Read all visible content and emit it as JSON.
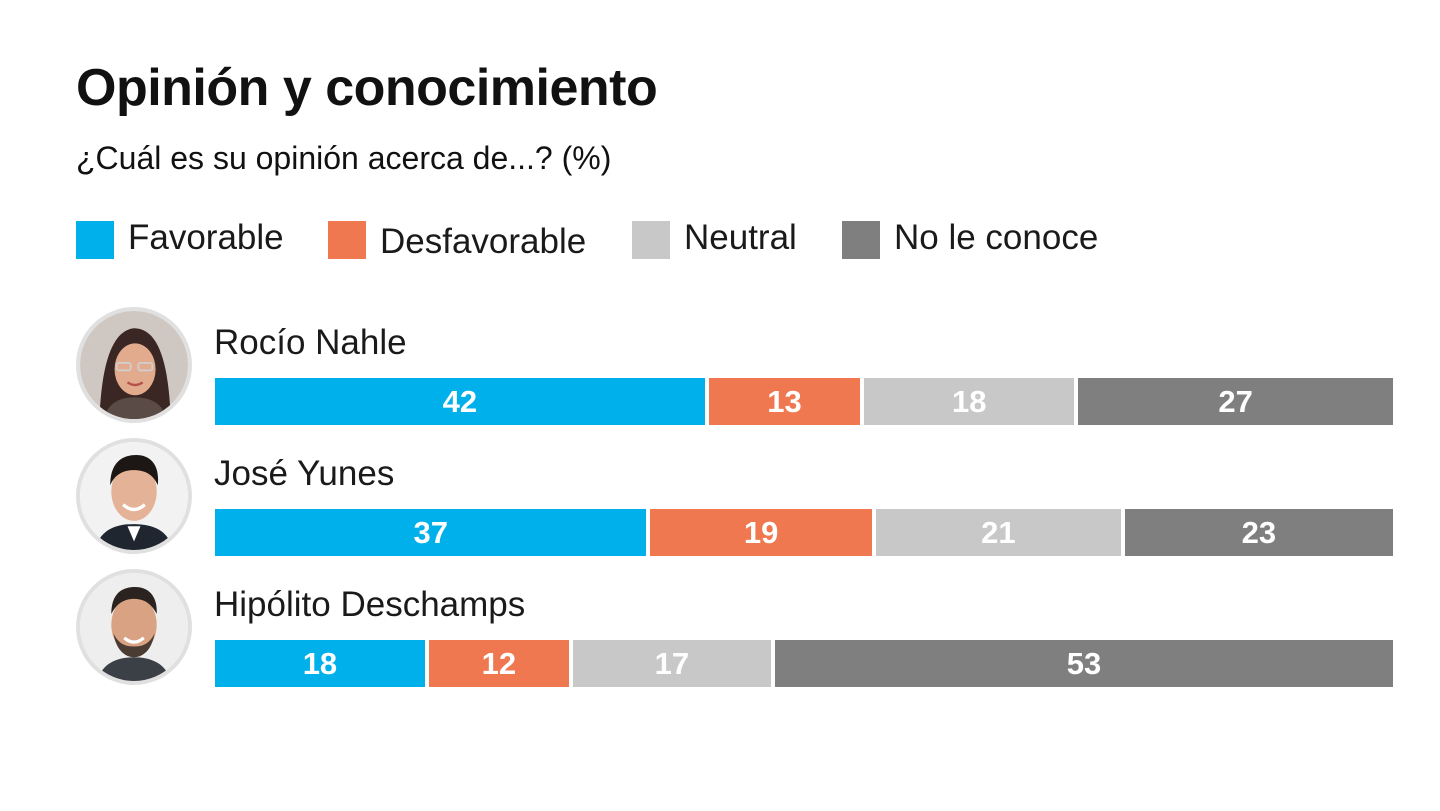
{
  "title": "Opinión y conocimiento",
  "subtitle": "¿Cuál es su opinión acerca de...? (%)",
  "colors": {
    "favorable": "#00b0eb",
    "desfavorable": "#f07850",
    "neutral": "#c8c8c8",
    "no_le_conoce": "#7f7f7f"
  },
  "legend": [
    {
      "label": "Favorable",
      "color": "#00b0eb"
    },
    {
      "label": "Desfavorable",
      "color": "#f07850"
    },
    {
      "label": "Neutral",
      "color": "#c8c8c8"
    },
    {
      "label": "No le conoce",
      "color": "#7f7f7f"
    }
  ],
  "chart_data": {
    "type": "bar",
    "orientation": "horizontal",
    "stacked": true,
    "normalized": true,
    "title": "Opinión y conocimiento",
    "subtitle": "¿Cuál es su opinión acerca de...? (%)",
    "categories": [
      "Rocío Nahle",
      "José Yunes",
      "Hipólito Deschamps"
    ],
    "series": [
      {
        "name": "Favorable",
        "color": "#00b0eb",
        "values": [
          42,
          37,
          18
        ]
      },
      {
        "name": "Desfavorable",
        "color": "#f07850",
        "values": [
          13,
          19,
          12
        ]
      },
      {
        "name": "Neutral",
        "color": "#c8c8c8",
        "values": [
          18,
          21,
          17
        ]
      },
      {
        "name": "No le conoce",
        "color": "#7f7f7f",
        "values": [
          27,
          23,
          53
        ]
      }
    ],
    "xlim": [
      0,
      100
    ],
    "legend_position": "top-left",
    "grid": false
  },
  "rows": [
    {
      "name": "Rocío Nahle",
      "avatar_icon": "portrait-rocio-nahle"
    },
    {
      "name": "José Yunes",
      "avatar_icon": "portrait-jose-yunes"
    },
    {
      "name": "Hipólito Deschamps",
      "avatar_icon": "portrait-hipolito-deschamps"
    }
  ]
}
